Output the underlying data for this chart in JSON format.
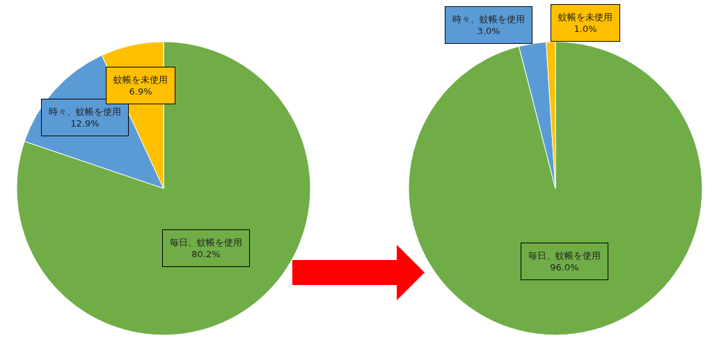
{
  "chart_data": [
    {
      "type": "pie",
      "categories": [
        "毎日、蚊帳を使用",
        "時々、蚊帳を使用",
        "蚊帳を未使用"
      ],
      "values": [
        80.2,
        12.9,
        6.9
      ],
      "colors": [
        "#70ad47",
        "#5b9bd5",
        "#ffc000"
      ],
      "value_labels": [
        "80.2%",
        "12.9%",
        "6.9%"
      ],
      "legend": false
    },
    {
      "type": "pie",
      "categories": [
        "毎日、蚊帳を使用",
        "時々、蚊帳を使用",
        "蚊帳を未使用"
      ],
      "values": [
        96.0,
        3.0,
        1.0
      ],
      "colors": [
        "#70ad47",
        "#5b9bd5",
        "#ffc000"
      ],
      "value_labels": [
        "96.0%",
        "3.0%",
        "1.0%"
      ],
      "legend": false
    }
  ]
}
